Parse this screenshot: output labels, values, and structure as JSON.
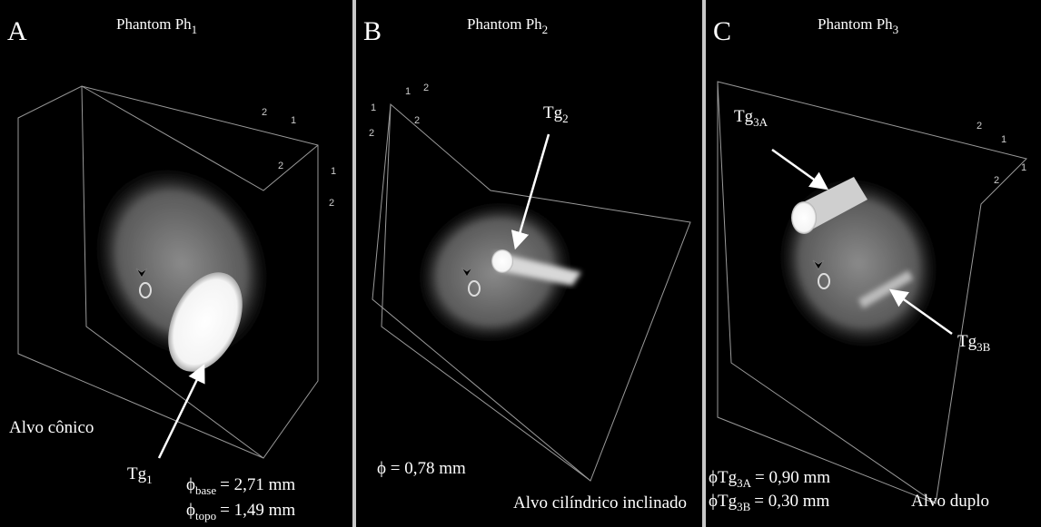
{
  "panels": [
    {
      "letter": "A",
      "title": "Phantom Ph",
      "title_sub": "1",
      "axis_labels": [
        "2",
        "1",
        "2",
        "1",
        "2"
      ],
      "shape": "Alvo cônico",
      "target": "Tg",
      "target_sub": "1",
      "phi_base": {
        "symbol": "ϕ",
        "sub": "base",
        "value": "= 2,71 mm"
      },
      "phi_topo": {
        "symbol": "ϕ",
        "sub": "topo",
        "value": "= 1,49 mm"
      }
    },
    {
      "letter": "B",
      "title": "Phantom Ph",
      "title_sub": "2",
      "axis_labels": [
        "1",
        "2",
        "1",
        "2",
        "2"
      ],
      "shape": "Alvo cilíndrico inclinado",
      "target": "Tg",
      "target_sub": "2",
      "phi": "ϕ = 0,78 mm"
    },
    {
      "letter": "C",
      "title": "Phantom Ph",
      "title_sub": "3",
      "axis_labels": [
        "2",
        "1",
        "2",
        "1"
      ],
      "shape": "Alvo duplo",
      "target_a": "Tg",
      "target_a_sub": "3A",
      "target_b": "Tg",
      "target_b_sub": "3B",
      "phi_a": {
        "symbol": "ϕTg",
        "sub": "3A",
        "value": "= 0,90 mm"
      },
      "phi_b": {
        "symbol": "ϕTg",
        "sub": "3B",
        "value": "= 0,30 mm"
      }
    }
  ]
}
